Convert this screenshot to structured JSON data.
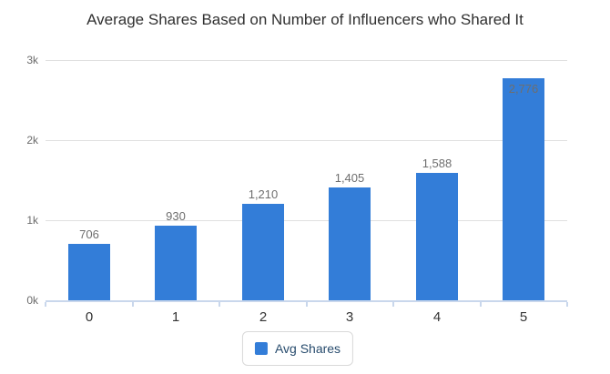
{
  "title": "Average Shares Based on Number of Influencers who Shared It",
  "colors": {
    "bar": "#337dd8",
    "grid": "#e0e0e0",
    "axis_line": "#c9d7ec",
    "value_label": "#6e6e6e",
    "x_label": "#333333",
    "y_label": "#6b6b6b",
    "legend_text": "#274b6d"
  },
  "legend": {
    "items": [
      {
        "label": "Avg Shares",
        "color": "#337dd8"
      }
    ]
  },
  "chart_data": {
    "type": "bar",
    "title": "Average Shares Based on Number of Influencers who Shared It",
    "categories": [
      "0",
      "1",
      "2",
      "3",
      "4",
      "5"
    ],
    "series": [
      {
        "name": "Avg Shares",
        "values": [
          706,
          930,
          1210,
          1405,
          1588,
          2776
        ]
      }
    ],
    "value_labels": [
      "706",
      "930",
      "1,210",
      "1,405",
      "1,588",
      "2,776"
    ],
    "xlabel": "",
    "ylabel": "",
    "y_ticks": [
      "0k",
      "1k",
      "2k",
      "3k"
    ],
    "ylim": [
      0,
      3000
    ],
    "grid": true,
    "legend_position": "bottom",
    "bar_color": "#337dd8"
  }
}
